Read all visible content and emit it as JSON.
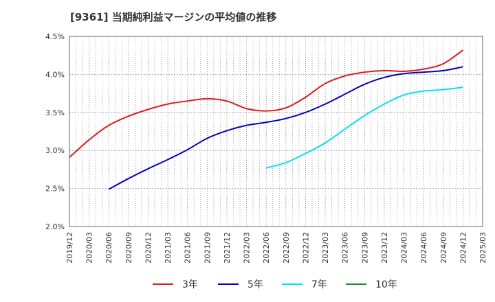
{
  "chart_data": {
    "type": "line",
    "title": "[9361]  当期純利益マージンの平均値の推移",
    "xlabel": "",
    "ylabel": "",
    "x_ticks": [
      "2019/12",
      "2020/03",
      "2020/06",
      "2020/09",
      "2020/12",
      "2021/03",
      "2021/06",
      "2021/09",
      "2021/12",
      "2022/03",
      "2022/06",
      "2022/09",
      "2022/12",
      "2023/03",
      "2023/06",
      "2023/09",
      "2023/12",
      "2024/03",
      "2024/06",
      "2024/09",
      "2024/12",
      "2025/03"
    ],
    "y_ticks": [
      "2.0%",
      "2.5%",
      "3.0%",
      "3.5%",
      "4.0%",
      "4.5%"
    ],
    "ylim": [
      2.0,
      4.5
    ],
    "grid": true,
    "legend_position": "bottom",
    "series": [
      {
        "name": "3年",
        "color": "#e31a1c",
        "x": [
          "2019/12",
          "2020/03",
          "2020/06",
          "2020/09",
          "2020/12",
          "2021/03",
          "2021/06",
          "2021/09",
          "2021/12",
          "2022/03",
          "2022/06",
          "2022/09",
          "2022/12",
          "2023/03",
          "2023/06",
          "2023/09",
          "2023/12",
          "2024/03",
          "2024/06",
          "2024/09",
          "2024/12"
        ],
        "values": [
          2.91,
          3.14,
          3.33,
          3.45,
          3.54,
          3.61,
          3.65,
          3.68,
          3.65,
          3.55,
          3.52,
          3.56,
          3.7,
          3.88,
          3.98,
          4.03,
          4.05,
          4.04,
          4.07,
          4.14,
          4.32
        ]
      },
      {
        "name": "5年",
        "color": "#0000cc",
        "x": [
          "2020/06",
          "2020/09",
          "2020/12",
          "2021/03",
          "2021/06",
          "2021/09",
          "2021/12",
          "2022/03",
          "2022/06",
          "2022/09",
          "2022/12",
          "2023/03",
          "2023/06",
          "2023/09",
          "2023/12",
          "2024/03",
          "2024/06",
          "2024/09",
          "2024/12"
        ],
        "values": [
          2.49,
          2.63,
          2.76,
          2.88,
          3.01,
          3.16,
          3.26,
          3.33,
          3.37,
          3.42,
          3.5,
          3.61,
          3.74,
          3.87,
          3.96,
          4.01,
          4.03,
          4.05,
          4.1
        ]
      },
      {
        "name": "7年",
        "color": "#00e5ee",
        "x": [
          "2022/06",
          "2022/09",
          "2022/12",
          "2023/03",
          "2023/06",
          "2023/09",
          "2023/12",
          "2024/03",
          "2024/06",
          "2024/09",
          "2024/12"
        ],
        "values": [
          2.77,
          2.84,
          2.96,
          3.1,
          3.28,
          3.46,
          3.61,
          3.73,
          3.78,
          3.8,
          3.83
        ]
      },
      {
        "name": "10年",
        "color": "#228b22",
        "x": [],
        "values": []
      }
    ]
  }
}
